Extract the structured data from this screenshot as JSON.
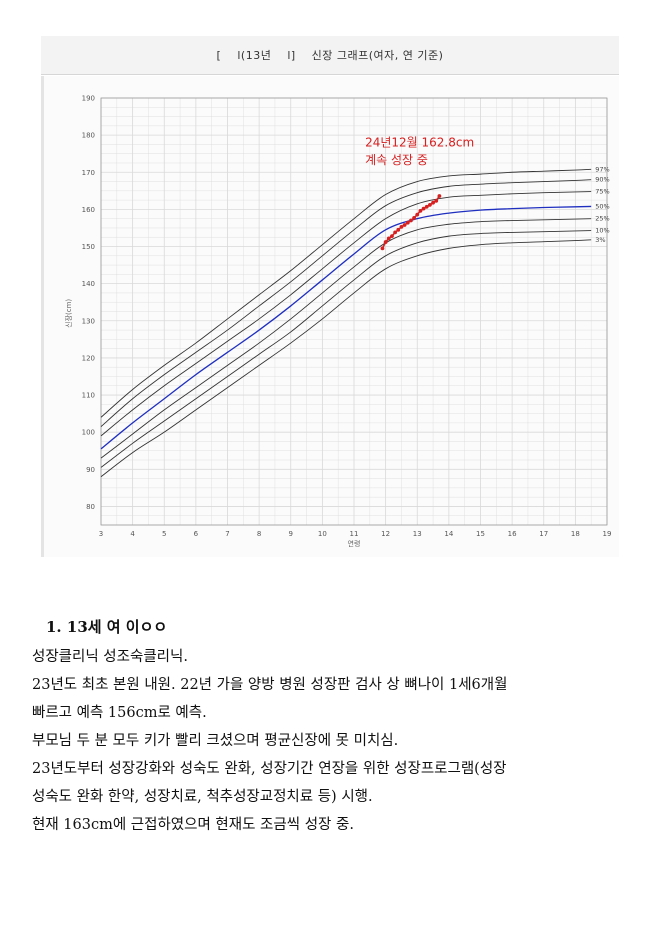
{
  "chart_header": {
    "bracket_open": "[",
    "year_fragment": "l(13년",
    "bracket_close": "l]",
    "title": "신장 그래프(여자, 연 기준)"
  },
  "chart_data": {
    "type": "line",
    "xlabel": "연령",
    "ylabel": "신장(cm)",
    "xlim": [
      3,
      19
    ],
    "ylim": [
      75,
      190
    ],
    "x_ticks": [
      "3",
      "4",
      "5",
      "6",
      "7",
      "8",
      "9",
      "10",
      "11",
      "12",
      "13",
      "14",
      "15",
      "16",
      "17",
      "18",
      "19"
    ],
    "y_ticks": [
      "80",
      "90",
      "100",
      "110",
      "120",
      "130",
      "140",
      "150",
      "160",
      "170",
      "180",
      "190"
    ],
    "grid": true,
    "percentile_curves": [
      {
        "name": "97%",
        "x": [
          3,
          4,
          5,
          6,
          7,
          8,
          9,
          10,
          11,
          12,
          13,
          14,
          15,
          16,
          17,
          18,
          18.5
        ],
        "values": [
          104,
          111.5,
          118,
          124,
          130.5,
          137,
          143.5,
          150.5,
          157.5,
          164,
          167.5,
          169,
          169.5,
          170,
          170.3,
          170.6,
          170.8
        ]
      },
      {
        "name": "90%",
        "x": [
          3,
          4,
          5,
          6,
          7,
          8,
          9,
          10,
          11,
          12,
          13,
          14,
          15,
          16,
          17,
          18,
          18.5
        ],
        "values": [
          101.5,
          109,
          115.5,
          121.5,
          127.5,
          134,
          140.5,
          147.5,
          154.5,
          161,
          164.5,
          166.2,
          166.8,
          167.2,
          167.5,
          167.8,
          168
        ]
      },
      {
        "name": "75%",
        "x": [
          3,
          4,
          5,
          6,
          7,
          8,
          9,
          10,
          11,
          12,
          13,
          14,
          15,
          16,
          17,
          18,
          18.5
        ],
        "values": [
          99,
          106,
          112.5,
          118.5,
          124.5,
          130.5,
          137,
          144,
          151,
          157.5,
          161.5,
          163.3,
          163.8,
          164.2,
          164.5,
          164.7,
          164.8
        ]
      },
      {
        "name": "50%",
        "x": [
          3,
          4,
          5,
          6,
          7,
          8,
          9,
          10,
          11,
          12,
          13,
          14,
          15,
          16,
          17,
          18,
          18.5
        ],
        "values": [
          95.5,
          102.5,
          109,
          115.5,
          121.5,
          127.5,
          134,
          141,
          148,
          154.5,
          157.5,
          159,
          159.8,
          160.2,
          160.5,
          160.7,
          160.8
        ]
      },
      {
        "name": "25%",
        "x": [
          3,
          4,
          5,
          6,
          7,
          8,
          9,
          10,
          11,
          12,
          13,
          14,
          15,
          16,
          17,
          18,
          18.5
        ],
        "values": [
          93,
          99.5,
          106,
          112,
          118,
          124,
          130.5,
          137.5,
          144.5,
          151,
          154.5,
          156,
          156.7,
          157,
          157.2,
          157.4,
          157.5
        ]
      },
      {
        "name": "10%",
        "x": [
          3,
          4,
          5,
          6,
          7,
          8,
          9,
          10,
          11,
          12,
          13,
          14,
          15,
          16,
          17,
          18,
          18.5
        ],
        "values": [
          90.5,
          97,
          103,
          109,
          115,
          121,
          127,
          134,
          141,
          147.5,
          151,
          152.8,
          153.5,
          153.8,
          154,
          154.2,
          154.3
        ]
      },
      {
        "name": "3%",
        "x": [
          3,
          4,
          5,
          6,
          7,
          8,
          9,
          10,
          11,
          12,
          13,
          14,
          15,
          16,
          17,
          18,
          18.5
        ],
        "values": [
          88,
          94.5,
          100,
          106,
          112,
          118,
          124,
          130.5,
          137.5,
          144,
          147.5,
          149.5,
          150.5,
          151,
          151.3,
          151.6,
          151.8
        ]
      }
    ],
    "patient_series": {
      "x": [
        11.9,
        12.0,
        12.1,
        12.2,
        12.3,
        12.4,
        12.5,
        12.6,
        12.7,
        12.8,
        12.9,
        13.0,
        13.1,
        13.2,
        13.3,
        13.4,
        13.5,
        13.6,
        13.7
      ],
      "values": [
        149.5,
        151.2,
        152.2,
        152.8,
        153.8,
        154.5,
        155.3,
        155.8,
        156.4,
        157,
        157.7,
        158.6,
        159.6,
        160.2,
        160.7,
        161.2,
        161.8,
        162.3,
        163.6
      ]
    },
    "annotation": {
      "line1": "24년12월 162.8cm",
      "line2": "계속 성장 중"
    },
    "colors": {
      "median": "#1f2fbf",
      "percentiles": "#333333",
      "patient": "#d62020",
      "grid": "#d9d9d9"
    }
  },
  "case": {
    "title": "1. 13세 여 이ㅇㅇ",
    "lines": [
      "성장클리닉 성조숙클리닉.",
      "23년도 최초 본원 내원. 22년 가을 양방 병원 성장판 검사 상 뼈나이 1세6개월",
      "빠르고 예측 156cm로 예측.",
      "부모님 두 분 모두 키가 빨리 크셨으며 평균신장에 못 미치심.",
      "23년도부터 성장강화와 성숙도 완화, 성장기간 연장을 위한 성장프로그램(성장",
      "성숙도 완화 한약, 성장치료, 척추성장교정치료 등) 시행.",
      "현재 163cm에 근접하였으며 현재도 조금씩 성장 중."
    ]
  }
}
